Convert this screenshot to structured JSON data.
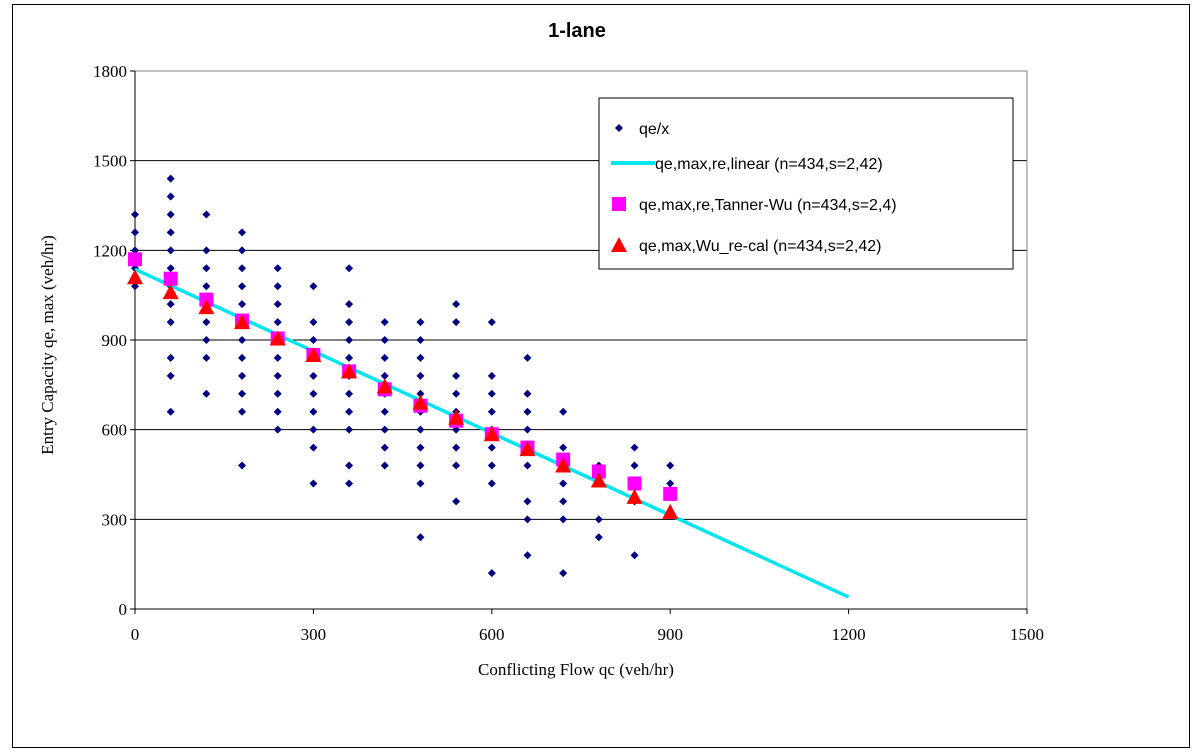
{
  "chart_data": {
    "type": "scatter",
    "title": "1-lane",
    "xlabel": "Conflicting Flow qc (veh/hr)",
    "ylabel": "Entry Capacity qe, max (veh/hr)",
    "xlim": [
      0,
      1500
    ],
    "ylim": [
      0,
      1800
    ],
    "xticks": [
      0,
      300,
      600,
      900,
      1200,
      1500
    ],
    "yticks": [
      0,
      300,
      600,
      900,
      1200,
      1500,
      1800
    ],
    "grid": "horizontal",
    "legend_position": "top-right",
    "series": [
      {
        "name": "qe/x",
        "kind": "scatter",
        "marker": "diamond",
        "color": "#000080",
        "points": [
          [
            0,
            1080
          ],
          [
            0,
            1140
          ],
          [
            0,
            1200
          ],
          [
            0,
            1260
          ],
          [
            0,
            1320
          ],
          [
            60,
            660
          ],
          [
            60,
            780
          ],
          [
            60,
            840
          ],
          [
            60,
            960
          ],
          [
            60,
            1020
          ],
          [
            60,
            1080
          ],
          [
            60,
            1140
          ],
          [
            60,
            1200
          ],
          [
            60,
            1260
          ],
          [
            60,
            1320
          ],
          [
            60,
            1380
          ],
          [
            60,
            1440
          ],
          [
            120,
            720
          ],
          [
            120,
            840
          ],
          [
            120,
            900
          ],
          [
            120,
            960
          ],
          [
            120,
            1020
          ],
          [
            120,
            1080
          ],
          [
            120,
            1140
          ],
          [
            120,
            1200
          ],
          [
            120,
            1320
          ],
          [
            180,
            480
          ],
          [
            180,
            660
          ],
          [
            180,
            720
          ],
          [
            180,
            780
          ],
          [
            180,
            840
          ],
          [
            180,
            900
          ],
          [
            180,
            960
          ],
          [
            180,
            1020
          ],
          [
            180,
            1080
          ],
          [
            180,
            1140
          ],
          [
            180,
            1200
          ],
          [
            180,
            1260
          ],
          [
            240,
            600
          ],
          [
            240,
            660
          ],
          [
            240,
            720
          ],
          [
            240,
            780
          ],
          [
            240,
            840
          ],
          [
            240,
            900
          ],
          [
            240,
            960
          ],
          [
            240,
            1020
          ],
          [
            240,
            1080
          ],
          [
            240,
            1140
          ],
          [
            300,
            420
          ],
          [
            300,
            540
          ],
          [
            300,
            600
          ],
          [
            300,
            660
          ],
          [
            300,
            720
          ],
          [
            300,
            780
          ],
          [
            300,
            840
          ],
          [
            300,
            900
          ],
          [
            300,
            960
          ],
          [
            300,
            1080
          ],
          [
            360,
            420
          ],
          [
            360,
            480
          ],
          [
            360,
            600
          ],
          [
            360,
            660
          ],
          [
            360,
            720
          ],
          [
            360,
            780
          ],
          [
            360,
            840
          ],
          [
            360,
            900
          ],
          [
            360,
            960
          ],
          [
            360,
            1020
          ],
          [
            360,
            1140
          ],
          [
            420,
            480
          ],
          [
            420,
            540
          ],
          [
            420,
            600
          ],
          [
            420,
            660
          ],
          [
            420,
            720
          ],
          [
            420,
            780
          ],
          [
            420,
            840
          ],
          [
            420,
            900
          ],
          [
            420,
            960
          ],
          [
            480,
            240
          ],
          [
            480,
            420
          ],
          [
            480,
            480
          ],
          [
            480,
            540
          ],
          [
            480,
            600
          ],
          [
            480,
            660
          ],
          [
            480,
            720
          ],
          [
            480,
            780
          ],
          [
            480,
            840
          ],
          [
            480,
            900
          ],
          [
            480,
            960
          ],
          [
            540,
            360
          ],
          [
            540,
            480
          ],
          [
            540,
            540
          ],
          [
            540,
            600
          ],
          [
            540,
            660
          ],
          [
            540,
            720
          ],
          [
            540,
            780
          ],
          [
            540,
            960
          ],
          [
            540,
            1020
          ],
          [
            600,
            120
          ],
          [
            600,
            420
          ],
          [
            600,
            480
          ],
          [
            600,
            540
          ],
          [
            600,
            600
          ],
          [
            600,
            660
          ],
          [
            600,
            720
          ],
          [
            600,
            780
          ],
          [
            600,
            960
          ],
          [
            660,
            180
          ],
          [
            660,
            300
          ],
          [
            660,
            360
          ],
          [
            660,
            480
          ],
          [
            660,
            540
          ],
          [
            660,
            600
          ],
          [
            660,
            660
          ],
          [
            660,
            720
          ],
          [
            660,
            840
          ],
          [
            720,
            120
          ],
          [
            720,
            300
          ],
          [
            720,
            360
          ],
          [
            720,
            420
          ],
          [
            720,
            480
          ],
          [
            720,
            540
          ],
          [
            720,
            660
          ],
          [
            780,
            240
          ],
          [
            780,
            300
          ],
          [
            780,
            420
          ],
          [
            780,
            480
          ],
          [
            840,
            180
          ],
          [
            840,
            360
          ],
          [
            840,
            420
          ],
          [
            840,
            480
          ],
          [
            840,
            540
          ],
          [
            900,
            420
          ],
          [
            900,
            480
          ]
        ]
      },
      {
        "name": "qe,max,re,linear (n=434,s=2,42)",
        "kind": "line",
        "color": "#00e5ee",
        "points": [
          [
            0,
            1137
          ],
          [
            1200,
            40
          ]
        ]
      },
      {
        "name": "qe,max,re,Tanner-Wu (n=434,s=2,4)",
        "kind": "scatter",
        "marker": "square",
        "color": "#ff00ff",
        "points": [
          [
            0,
            1170
          ],
          [
            60,
            1105
          ],
          [
            120,
            1035
          ],
          [
            180,
            965
          ],
          [
            240,
            905
          ],
          [
            300,
            850
          ],
          [
            360,
            795
          ],
          [
            420,
            735
          ],
          [
            480,
            680
          ],
          [
            540,
            630
          ],
          [
            600,
            585
          ],
          [
            660,
            540
          ],
          [
            720,
            500
          ],
          [
            780,
            460
          ],
          [
            840,
            420
          ],
          [
            900,
            385
          ]
        ]
      },
      {
        "name": "qe,max,Wu_re-cal (n=434,s=2,42)",
        "kind": "scatter",
        "marker": "triangle",
        "color": "#ff0000",
        "points": [
          [
            0,
            1110
          ],
          [
            60,
            1060
          ],
          [
            120,
            1010
          ],
          [
            180,
            960
          ],
          [
            240,
            905
          ],
          [
            300,
            850
          ],
          [
            360,
            795
          ],
          [
            420,
            745
          ],
          [
            480,
            690
          ],
          [
            540,
            640
          ],
          [
            600,
            585
          ],
          [
            660,
            535
          ],
          [
            720,
            480
          ],
          [
            780,
            430
          ],
          [
            840,
            375
          ],
          [
            900,
            325
          ]
        ]
      }
    ]
  }
}
